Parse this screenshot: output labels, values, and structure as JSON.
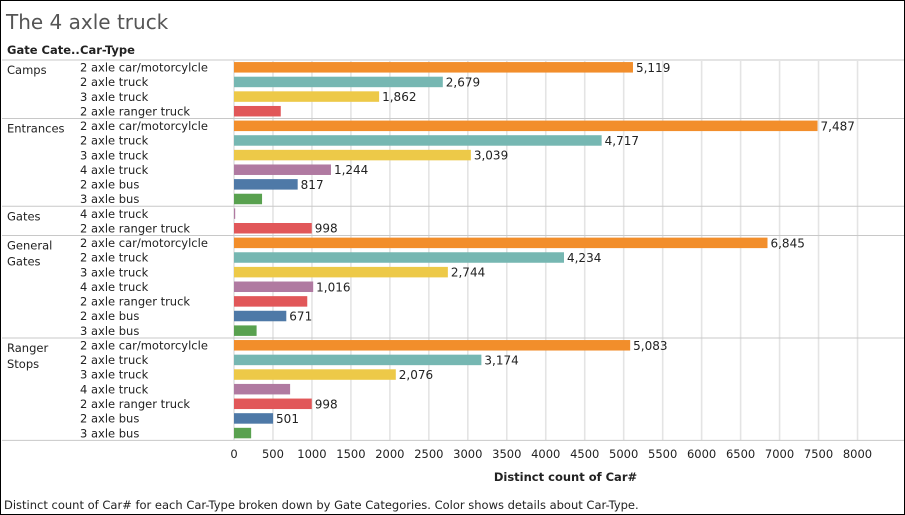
{
  "page": {
    "title": "The 4 axle truck",
    "caption": "Distinct count of Car# for each Car-Type broken down by Gate Categories.  Color shows details about Car-Type."
  },
  "colors": {
    "2 axle car/motorcylcle": "#f28e2b",
    "2 axle truck": "#76b7b2",
    "3 axle truck": "#edc948",
    "4 axle truck": "#b07aa1",
    "2 axle bus": "#4e79a7",
    "3 axle bus": "#59a14f",
    "2 axle ranger truck": "#e15759"
  },
  "chart_data": {
    "type": "bar",
    "orientation": "horizontal",
    "title": "The 4 axle truck",
    "xlabel": "Distinct count of Car#",
    "row_headers": [
      "Gate Cate..",
      "Car-Type"
    ],
    "xlim": [
      0,
      8250
    ],
    "xticks": [
      0,
      500,
      1000,
      1500,
      2000,
      2500,
      3000,
      3500,
      4000,
      4500,
      5000,
      5500,
      6000,
      6500,
      7000,
      7500,
      8000
    ],
    "grid": true,
    "groups": [
      {
        "name": "Camps",
        "rows": [
          {
            "type": "2 axle car/motorcylcle",
            "value": 5119,
            "label": "5,119"
          },
          {
            "type": "2 axle truck",
            "value": 2679,
            "label": "2,679"
          },
          {
            "type": "3 axle truck",
            "value": 1862,
            "label": "1,862"
          },
          {
            "type": "2 axle ranger truck",
            "value": 600,
            "label": ""
          }
        ]
      },
      {
        "name": "Entrances",
        "rows": [
          {
            "type": "2 axle car/motorcylcle",
            "value": 7487,
            "label": "7,487"
          },
          {
            "type": "2 axle truck",
            "value": 4717,
            "label": "4,717"
          },
          {
            "type": "3 axle truck",
            "value": 3039,
            "label": "3,039"
          },
          {
            "type": "4 axle truck",
            "value": 1244,
            "label": "1,244"
          },
          {
            "type": "2 axle bus",
            "value": 817,
            "label": "817"
          },
          {
            "type": "3 axle bus",
            "value": 360,
            "label": ""
          }
        ]
      },
      {
        "name": "Gates",
        "rows": [
          {
            "type": "4 axle truck",
            "value": 12,
            "label": ""
          },
          {
            "type": "2 axle ranger truck",
            "value": 998,
            "label": "998"
          }
        ]
      },
      {
        "name": "General Gates",
        "rows": [
          {
            "type": "2 axle car/motorcylcle",
            "value": 6845,
            "label": "6,845"
          },
          {
            "type": "2 axle truck",
            "value": 4234,
            "label": "4,234"
          },
          {
            "type": "3 axle truck",
            "value": 2744,
            "label": "2,744"
          },
          {
            "type": "4 axle truck",
            "value": 1016,
            "label": "1,016"
          },
          {
            "type": "2 axle ranger truck",
            "value": 940,
            "label": ""
          },
          {
            "type": "2 axle bus",
            "value": 671,
            "label": "671"
          },
          {
            "type": "3 axle bus",
            "value": 290,
            "label": ""
          }
        ]
      },
      {
        "name": "Ranger Stops",
        "rows": [
          {
            "type": "2 axle car/motorcylcle",
            "value": 5083,
            "label": "5,083"
          },
          {
            "type": "2 axle truck",
            "value": 3174,
            "label": "3,174"
          },
          {
            "type": "3 axle truck",
            "value": 2076,
            "label": "2,076"
          },
          {
            "type": "4 axle truck",
            "value": 720,
            "label": ""
          },
          {
            "type": "2 axle ranger truck",
            "value": 998,
            "label": "998"
          },
          {
            "type": "2 axle bus",
            "value": 501,
            "label": "501"
          },
          {
            "type": "3 axle bus",
            "value": 220,
            "label": ""
          }
        ]
      }
    ]
  }
}
